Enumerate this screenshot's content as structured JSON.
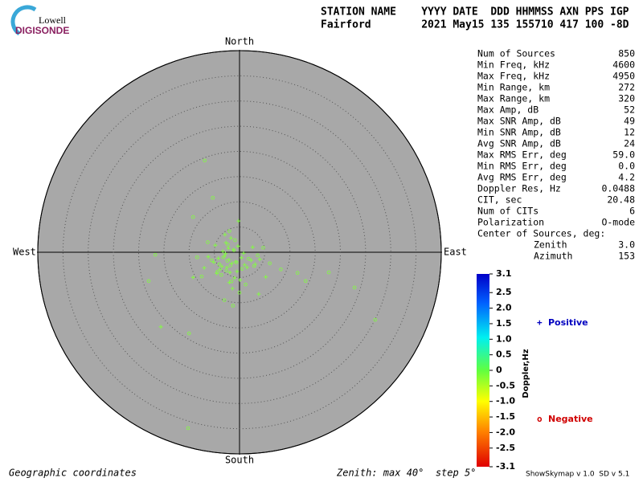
{
  "logo": {
    "top": "Lowell",
    "bottom": "DIGISONDE"
  },
  "header": {
    "columns": "STATION NAME    YYYY DATE  DDD HHMMSS AXN PPS IGP",
    "values": "Fairford        2021 May15 135 155710 417 100 -8D"
  },
  "chart_data": {
    "type": "skymap",
    "directions": {
      "north": "North",
      "south": "South",
      "east": "East",
      "west": "West"
    },
    "rlim": [
      0,
      40
    ],
    "rticks": [
      5,
      10,
      15,
      20,
      25,
      30,
      35,
      40
    ],
    "series": [
      {
        "name": "Positive",
        "marker": "+",
        "color": "#88f050",
        "legend_color": "#0000c0",
        "x": [
          -15.6,
          -2.1,
          -1.5,
          -3.0,
          -0.8,
          -2.5,
          -4.2,
          1.0,
          -1.2,
          -3.5,
          -2.8,
          0.4,
          -5.1,
          -1.9,
          2.3,
          -0.3,
          -3.9,
          -2.2,
          1.5,
          -6.2,
          -1.0,
          -2.7,
          0.8,
          -4.5,
          -1.7,
          3.1,
          -3.3,
          -2.0,
          -0.5,
          4.0,
          -7.0,
          2.6,
          -1.4,
          -2.9,
          0.1,
          -4.8,
          5.2,
          -9.2,
          3.8,
          -0.2
        ],
        "y": [
          -14.8,
          -1.5,
          -2.2,
          -0.8,
          -1.9,
          -3.0,
          -1.2,
          -2.5,
          0.5,
          -2.8,
          -0.3,
          -1.1,
          -2.0,
          -4.0,
          -1.6,
          1.2,
          -3.4,
          0.8,
          -3.0,
          -0.9,
          -5.1,
          1.9,
          -0.2,
          -4.2,
          2.8,
          -2.4,
          0.2,
          -6.0,
          -3.8,
          -1.4,
          -3.1,
          1.0,
          -7.2,
          3.5,
          -5.5,
          1.4,
          -4.9,
          -5.0,
          -8.3,
          6.2
        ]
      },
      {
        "name": "Negative",
        "marker": "o",
        "color": "#88f050",
        "legend_color": "#d00000",
        "x": [
          -6.9,
          -10.2,
          26.9,
          -10.0,
          17.7,
          22.8,
          -16.7,
          -18.0,
          -5.3,
          -9.2,
          11.5,
          13.1,
          -2.4,
          -1.8,
          -3.2,
          -0.6,
          -2.6,
          1.8,
          -4.0,
          -1.1,
          0.5,
          -3.6,
          -2.3,
          2.9,
          -5.5,
          -1.6,
          -0.9,
          3.6,
          -4.4,
          -2.0,
          6.0,
          -7.5,
          1.2,
          -3.0,
          8.2,
          -1.3,
          4.7,
          -6.3,
          0.0,
          -8.4
        ],
        "y": [
          18.2,
          -34.9,
          -13.4,
          -16.1,
          -4.0,
          -7.0,
          -0.5,
          -5.7,
          10.8,
          7.0,
          -4.1,
          -5.7,
          -1.7,
          -2.6,
          -1.0,
          -2.0,
          -3.6,
          -1.3,
          -2.4,
          0.4,
          -3.3,
          -4.5,
          1.5,
          -2.7,
          -1.6,
          -5.8,
          2.4,
          -0.6,
          -3.9,
          4.2,
          -2.2,
          -4.8,
          -6.4,
          -9.5,
          -3.4,
          -10.6,
          0.9,
          2.0,
          -8.0,
          -1.0
        ]
      }
    ],
    "colorbar": {
      "title": "Doppler,Hz",
      "lim": [
        -3.1,
        3.1
      ],
      "ticks": [
        3.1,
        2.5,
        {
          "value": 2,
          "label": "2.0"
        },
        1.5,
        {
          "value": 1,
          "label": "1.0"
        },
        0.5,
        0,
        -0.5,
        {
          "value": -1,
          "label": "-1.0"
        },
        -1.5,
        {
          "value": -2,
          "label": "-2.0"
        },
        -2.5,
        -3.1
      ]
    },
    "coordinates_note": "Geographic coordinates",
    "zenith_note": "Zenith: max 40°  step 5°"
  },
  "stats": {
    "rows": [
      [
        "Num of Sources",
        "850"
      ],
      [
        "Min Freq, kHz",
        "4600"
      ],
      [
        "Max Freq, kHz",
        "4950"
      ],
      [
        "Min Range, km",
        "272"
      ],
      [
        "Max Range, km",
        "320"
      ],
      [
        "Max Amp, dB",
        "52"
      ],
      [
        "Max SNR Amp, dB",
        "49"
      ],
      [
        "Min SNR Amp, dB",
        "12"
      ],
      [
        "Avg SNR Amp, dB",
        "24"
      ],
      [
        "Max RMS Err, deg",
        "59.0"
      ],
      [
        "Min RMS Err, deg",
        "0.0"
      ],
      [
        "Avg RMS Err, deg",
        "4.2"
      ],
      [
        "Doppler Res, Hz",
        "0.0488"
      ],
      [
        "CIT, sec",
        "20.48"
      ],
      [
        "Num of CITs",
        "6"
      ],
      [
        "Polarization",
        "O-mode"
      ]
    ],
    "center": {
      "title": "Center of Sources, deg:",
      "rows": [
        [
          "Zenith",
          "3.0"
        ],
        [
          "Azimuth",
          "153"
        ]
      ]
    }
  },
  "footer": {
    "version": "ShowSkymap v 1.0  SD v 5.1"
  }
}
